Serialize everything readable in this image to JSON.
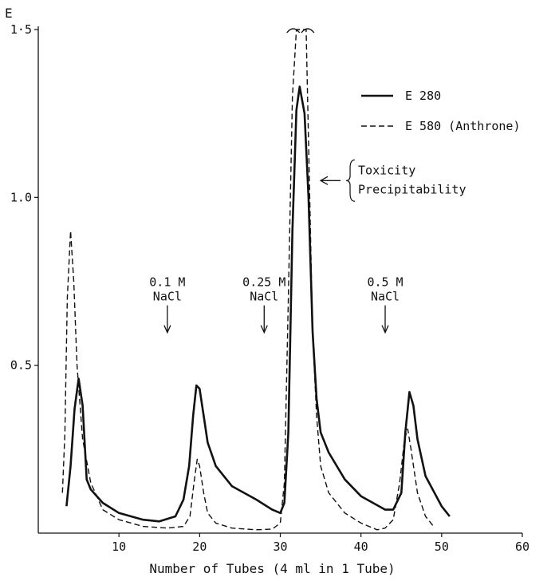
{
  "chart_data": {
    "type": "line",
    "title": "",
    "xlabel": "Number of Tubes (4 ml in 1 Tube)",
    "ylabel": "E",
    "xlim": [
      0,
      60
    ],
    "ylim": [
      0,
      1.5
    ],
    "x_ticks": [
      10,
      20,
      30,
      40,
      50,
      60
    ],
    "x_tick_labels": [
      "10",
      "20",
      "30",
      "40",
      "50",
      "60"
    ],
    "y_ticks": [
      0.5,
      1.0,
      1.5
    ],
    "y_tick_labels": [
      "0.5",
      "1.0",
      "1·5"
    ],
    "legend_position": "top-right",
    "series": [
      {
        "name": "E 280",
        "style": "solid",
        "x": [
          3.5,
          4.0,
          4.5,
          5.0,
          5.5,
          6.0,
          6.5,
          8.0,
          10.0,
          13.0,
          15.0,
          17.0,
          18.0,
          18.7,
          19.2,
          19.6,
          20.0,
          20.5,
          21.0,
          22.0,
          24.0,
          27.0,
          29.0,
          30.0,
          30.5,
          31.0,
          31.5,
          32.0,
          32.4,
          33.0,
          33.5,
          34.0,
          34.5,
          35.0,
          36.0,
          38.0,
          40.0,
          43.0,
          44.0,
          45.0,
          45.5,
          46.0,
          46.5,
          47.0,
          48.0,
          50.0,
          51.0
        ],
        "values": [
          0.08,
          0.2,
          0.37,
          0.46,
          0.38,
          0.16,
          0.13,
          0.09,
          0.06,
          0.04,
          0.035,
          0.05,
          0.1,
          0.2,
          0.35,
          0.44,
          0.43,
          0.35,
          0.27,
          0.2,
          0.14,
          0.1,
          0.07,
          0.06,
          0.09,
          0.3,
          0.9,
          1.26,
          1.33,
          1.25,
          1.0,
          0.6,
          0.4,
          0.3,
          0.24,
          0.16,
          0.11,
          0.07,
          0.07,
          0.12,
          0.3,
          0.42,
          0.38,
          0.28,
          0.17,
          0.08,
          0.05
        ]
      },
      {
        "name": "E 580 (Anthrone)",
        "style": "dashed",
        "x": [
          3.0,
          3.3,
          3.6,
          4.0,
          4.4,
          4.8,
          5.5,
          6.5,
          8.0,
          10.0,
          13.0,
          16.0,
          18.0,
          18.8,
          19.3,
          19.7,
          20.0,
          20.5,
          21.0,
          22.0,
          24.0,
          27.0,
          29.0,
          30.0,
          30.5,
          31.0,
          31.5,
          32.0,
          32.2,
          33.0,
          33.2,
          34.0,
          34.5,
          35.0,
          36.0,
          38.0,
          40.0,
          42.0,
          43.0,
          44.0,
          44.8,
          45.4,
          45.8,
          46.2,
          47.0,
          48.0,
          49.0
        ],
        "values": [
          0.12,
          0.3,
          0.7,
          0.9,
          0.75,
          0.5,
          0.28,
          0.15,
          0.07,
          0.04,
          0.02,
          0.015,
          0.02,
          0.05,
          0.15,
          0.22,
          0.2,
          0.12,
          0.06,
          0.03,
          0.015,
          0.01,
          0.012,
          0.03,
          0.15,
          0.7,
          1.3,
          1.5,
          1.5,
          1.5,
          1.5,
          0.6,
          0.35,
          0.2,
          0.12,
          0.06,
          0.03,
          0.01,
          0.015,
          0.04,
          0.15,
          0.28,
          0.31,
          0.25,
          0.12,
          0.05,
          0.02
        ]
      }
    ],
    "legend": [
      {
        "label": "E 280",
        "style": "solid"
      },
      {
        "label": "E 580 (Anthrone)",
        "style": "dashed"
      }
    ],
    "annotations": [
      {
        "lines": [
          "0.1 M",
          "NaCl"
        ],
        "x": 16,
        "y": 0.55
      },
      {
        "lines": [
          "0.25 M",
          "NaCl"
        ],
        "x": 28,
        "y": 0.55
      },
      {
        "lines": [
          "0.5 M",
          "NaCl"
        ],
        "x": 43,
        "y": 0.55
      }
    ],
    "peak_note": {
      "lines": [
        "Toxicity",
        "Precipitability"
      ],
      "x": 34.5,
      "y": 1.05
    }
  }
}
